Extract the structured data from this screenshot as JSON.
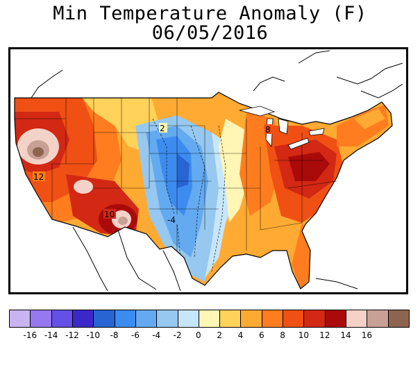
{
  "title": {
    "line1": "Min Temperature Anomaly (F)",
    "line2": "06/05/2016"
  },
  "map": {
    "region": "Contiguous United States",
    "contour_labels": [
      {
        "id": "pacific-nw-12",
        "text": "12"
      },
      {
        "id": "southwest-10",
        "text": "10"
      },
      {
        "id": "plains-minus4",
        "text": "-4"
      },
      {
        "id": "northern-plains-2",
        "text": "2"
      },
      {
        "id": "michigan-8",
        "text": "8"
      }
    ]
  },
  "legend": {
    "colors": [
      "#c8b4f0",
      "#9678f0",
      "#6450e6",
      "#3c28c8",
      "#2864d2",
      "#3c8cf0",
      "#64aaf0",
      "#96c8f0",
      "#c8e6fa",
      "#fff5b4",
      "#ffd25a",
      "#ffaa32",
      "#ff7d1e",
      "#f05014",
      "#d22814",
      "#aa0a0a",
      "#f5d2c8",
      "#c8a096",
      "#8c6450"
    ],
    "tick_labels": [
      "-16",
      "-14",
      "-12",
      "-10",
      "-8",
      "-6",
      "-4",
      "-2",
      "0",
      "2",
      "4",
      "6",
      "8",
      "10",
      "12",
      "14",
      "16"
    ]
  }
}
